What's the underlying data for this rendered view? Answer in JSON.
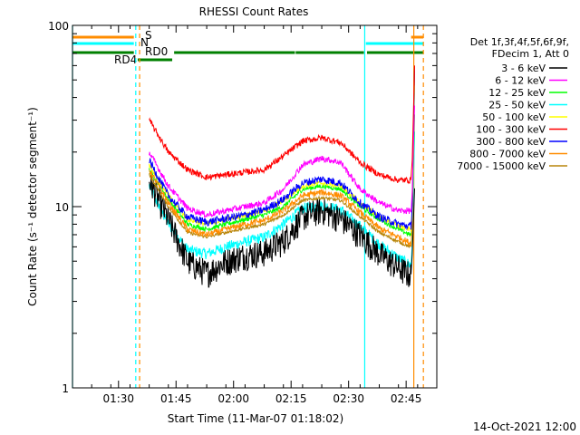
{
  "chart_data": {
    "type": "line",
    "title": "RHESSI Count Rates",
    "xlabel": "Start Time (11-Mar-07 01:18:02)",
    "ylabel": "Count Rate (s⁻¹ detector segment⁻¹)",
    "y_scale": "log",
    "ylim": [
      1,
      100
    ],
    "xlim_minutes": [
      0,
      95
    ],
    "x_tick_labels": [
      {
        "label": "01:30",
        "minute": 12
      },
      {
        "label": "01:45",
        "minute": 27
      },
      {
        "label": "02:00",
        "minute": 42
      },
      {
        "label": "02:15",
        "minute": 57
      },
      {
        "label": "02:30",
        "minute": 72
      },
      {
        "label": "02:45",
        "minute": 87
      }
    ],
    "y_tick_labels": [
      {
        "label": "1",
        "value": 1
      },
      {
        "label": "10",
        "value": 10
      },
      {
        "label": "100",
        "value": 100
      }
    ],
    "legend_header": [
      "Det 1f,3f,4f,5f,6f,9f,",
      "FDecim 1, Att 0"
    ],
    "footer_date": "14-Oct-2021 12:00",
    "data_start_minute": 20,
    "data_end_minute": 89.5,
    "x_sample_minutes": [
      20,
      25,
      30,
      35,
      40,
      45,
      50,
      55,
      60,
      65,
      70,
      75,
      80,
      85,
      88
    ],
    "series": [
      {
        "name": "3 - 6 keV",
        "color": "#000000",
        "noise": 0.18,
        "values": [
          14,
          8.5,
          5.0,
          4.3,
          5.0,
          5.4,
          5.6,
          6.5,
          8.8,
          9.6,
          8.6,
          7.0,
          5.5,
          4.6,
          4.2
        ]
      },
      {
        "name": "6 - 12 keV",
        "color": "#ff00ff",
        "noise": 0.04,
        "values": [
          20,
          13,
          9.8,
          9.0,
          9.5,
          10,
          10.5,
          12.5,
          17,
          18.5,
          17.5,
          12.5,
          10.5,
          9.5,
          9.5
        ]
      },
      {
        "name": "12 - 25 keV",
        "color": "#00ff00",
        "noise": 0.03,
        "values": [
          16,
          11,
          8.0,
          7.5,
          8.0,
          8.5,
          9.0,
          10.0,
          12.5,
          13.0,
          12.5,
          10.0,
          8.5,
          7.5,
          7.0
        ]
      },
      {
        "name": "25 - 50 keV",
        "color": "#00ffff",
        "noise": 0.07,
        "values": [
          13,
          8.0,
          5.8,
          5.5,
          6.0,
          6.4,
          6.8,
          8.0,
          9.8,
          10.2,
          9.6,
          7.8,
          6.2,
          5.2,
          4.8
        ]
      },
      {
        "name": "50 - 100 keV",
        "color": "#ffff00",
        "noise": 0.03,
        "values": [
          17,
          11.5,
          8.5,
          8.0,
          8.5,
          9.0,
          9.5,
          10.8,
          13.0,
          13.5,
          13.0,
          10.5,
          8.8,
          7.8,
          7.5
        ]
      },
      {
        "name": "100 - 300 keV",
        "color": "#ff0000",
        "noise": 0.04,
        "values": [
          30,
          20,
          16,
          14.5,
          15,
          15.5,
          16,
          19,
          23,
          24,
          22.5,
          17.5,
          15,
          14,
          14
        ]
      },
      {
        "name": "300 - 800 keV",
        "color": "#0000ff",
        "noise": 0.05,
        "values": [
          18,
          11.5,
          8.8,
          8.2,
          8.6,
          9.0,
          9.6,
          11.0,
          13.5,
          14.2,
          13.5,
          10.5,
          8.8,
          8.0,
          7.8
        ]
      },
      {
        "name": "800 - 7000 keV",
        "color": "#ff8c00",
        "noise": 0.04,
        "values": [
          16,
          10.5,
          7.5,
          7.0,
          7.5,
          8.0,
          8.4,
          9.5,
          11.5,
          12.0,
          11.5,
          9.3,
          7.6,
          6.8,
          6.3
        ]
      },
      {
        "name": "7000 - 15000 keV",
        "color": "#b8860b",
        "noise": 0.02,
        "values": [
          15,
          10,
          7.2,
          6.8,
          7.2,
          7.6,
          8.0,
          9.0,
          10.8,
          11.2,
          10.8,
          8.8,
          7.2,
          6.4,
          6.0
        ]
      }
    ],
    "flag_bars": [
      {
        "name": "S",
        "color": "#ff8c00",
        "label": "S",
        "segments": [
          [
            0,
            16
          ],
          [
            88.3,
            91.5
          ]
        ]
      },
      {
        "name": "N",
        "color": "#00ffff",
        "label": "N",
        "segments": [
          [
            0,
            16
          ],
          [
            76.5,
            91.5
          ]
        ]
      },
      {
        "name": "RD0",
        "color": "#008000",
        "label": "RD0",
        "segments": [
          [
            0,
            16
          ],
          [
            26.5,
            58
          ],
          [
            58.2,
            76
          ],
          [
            76.8,
            91.5
          ]
        ]
      },
      {
        "name": "RD4",
        "color": "#008000",
        "label": "RD4",
        "segments": [
          [
            17,
            26
          ]
        ]
      }
    ],
    "vertical_markers": [
      {
        "minute": 0,
        "color": "#00ffff",
        "style": "solid"
      },
      {
        "minute": 16.5,
        "color": "#00ffff",
        "style": "dashed"
      },
      {
        "minute": 17.5,
        "color": "#ff8c00",
        "style": "dashed"
      },
      {
        "minute": 76.2,
        "color": "#00ffff",
        "style": "solid"
      },
      {
        "minute": 89,
        "color": "#ff8c00",
        "style": "solid"
      },
      {
        "minute": 91.5,
        "color": "#ff8c00",
        "style": "dashed"
      }
    ]
  }
}
